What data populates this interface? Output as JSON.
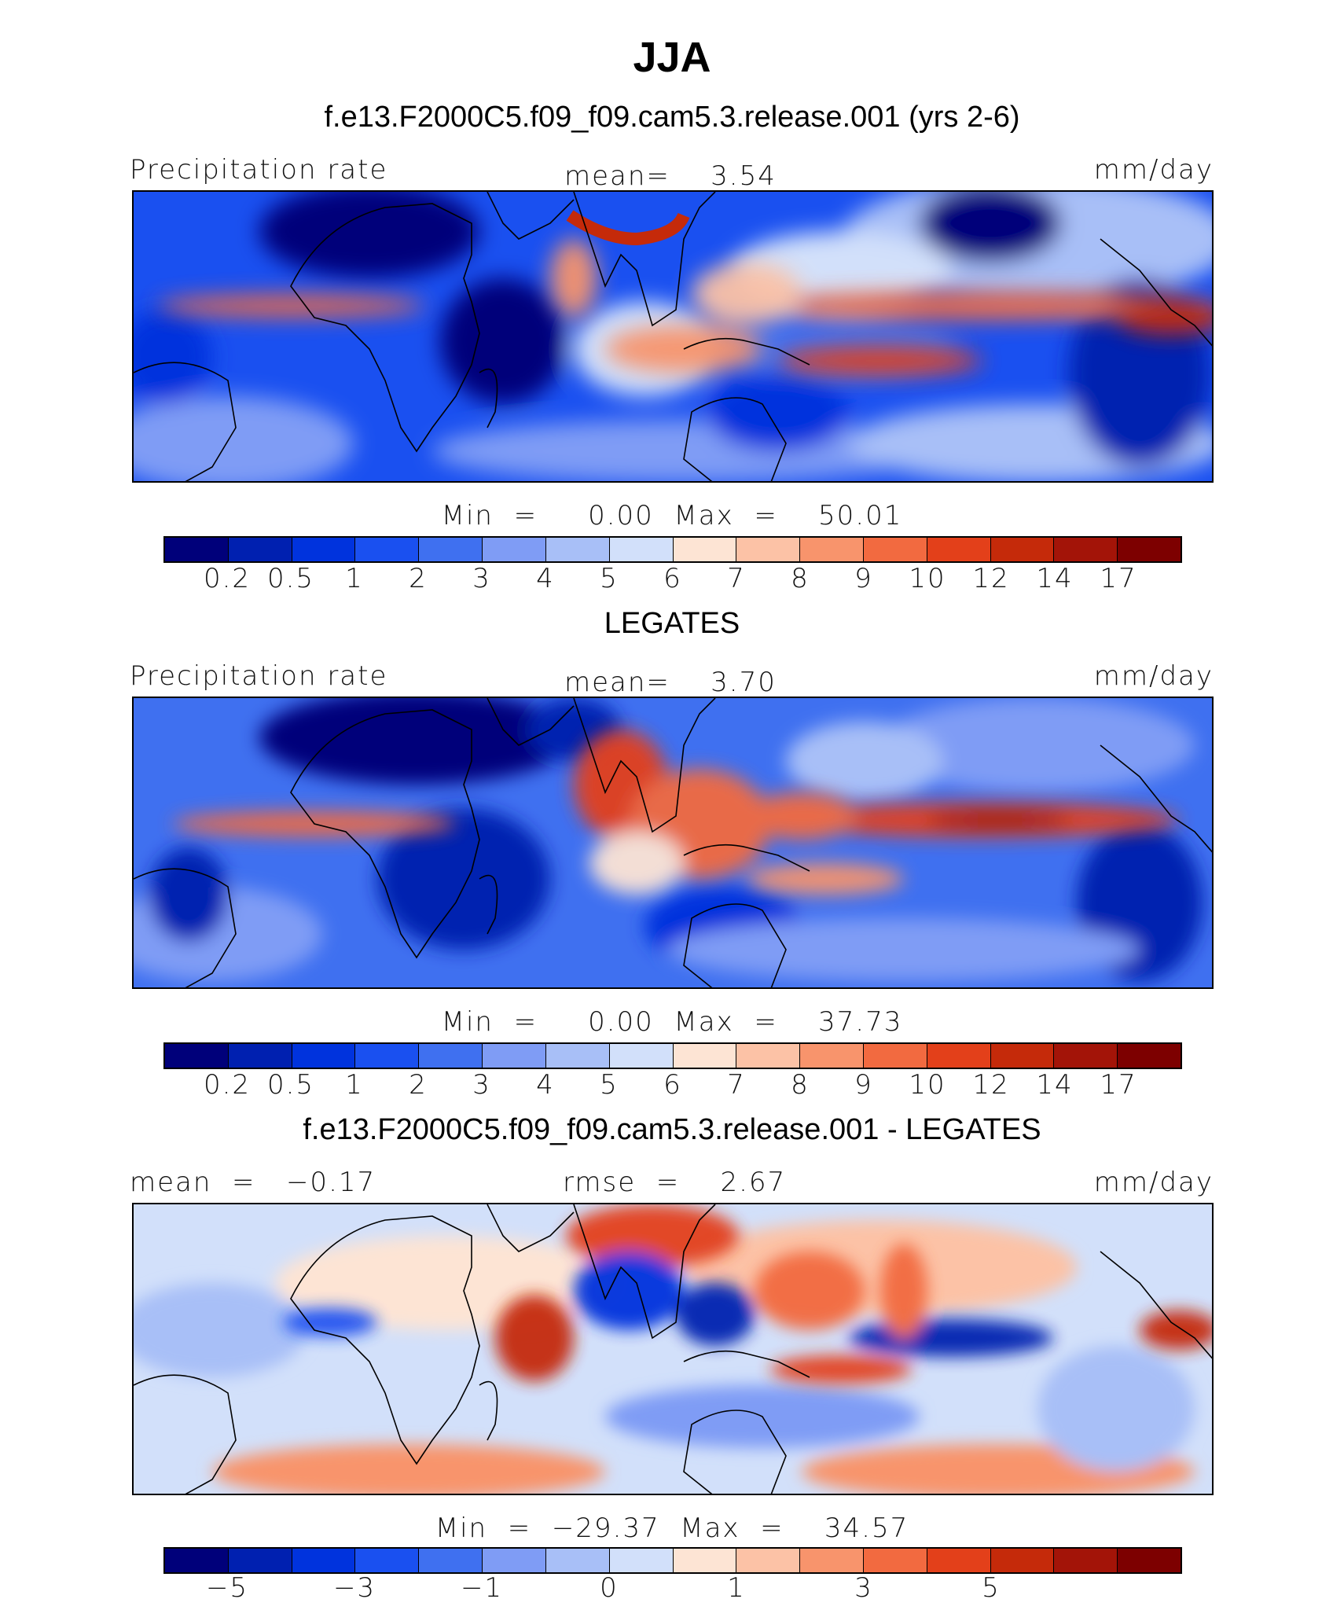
{
  "title": "JJA",
  "colors": {
    "precip_scale": [
      "#00007a",
      "#0020b0",
      "#0033dd",
      "#1a50f0",
      "#3f70f0",
      "#7f9cf5",
      "#a8bff7",
      "#d2e0fa",
      "#fde4d4",
      "#fcc2a6",
      "#f8946c",
      "#f26a40",
      "#e3401a",
      "#c52a0a",
      "#a31408",
      "#7d0000"
    ],
    "diff_scale": [
      "#00007a",
      "#0020b0",
      "#0033dd",
      "#1a50f0",
      "#3f70f0",
      "#7f9cf5",
      "#a8bff7",
      "#d2e0fa",
      "#fde4d4",
      "#fcc2a6",
      "#f8946c",
      "#f26a40",
      "#e3401a",
      "#c52a0a",
      "#a31408",
      "#7d0000"
    ]
  },
  "panels": [
    {
      "heading": "f.e13.F2000C5.f09_f09.cam5.3.release.001 (yrs 2-6)",
      "left_label": "Precipitation rate",
      "center_label": "mean=    3.54",
      "right_label": "mm/day",
      "min_max": "Min  =     0.00  Max  =    50.01",
      "tick_labels": [
        "0.2",
        "0.5",
        "1",
        "2",
        "3",
        "4",
        "5",
        "6",
        "7",
        "8",
        "9",
        "10",
        "12",
        "14",
        "17"
      ],
      "scale": "precip_scale"
    },
    {
      "heading": "LEGATES",
      "left_label": "Precipitation rate",
      "center_label": "mean=    3.70",
      "right_label": "mm/day",
      "min_max": "Min  =     0.00  Max  =    37.73",
      "tick_labels": [
        "0.2",
        "0.5",
        "1",
        "2",
        "3",
        "4",
        "5",
        "6",
        "7",
        "8",
        "9",
        "10",
        "12",
        "14",
        "17"
      ],
      "scale": "precip_scale"
    },
    {
      "heading": "f.e13.F2000C5.f09_f09.cam5.3.release.001 - LEGATES",
      "left_label": "mean  =   −0.17",
      "center_label": "rmse  =    2.67",
      "right_label": "mm/day",
      "min_max": "Min  =  −29.37  Max  =    34.57",
      "tick_labels": [
        "−5",
        "",
        "−3",
        "",
        "−1",
        "",
        "0",
        "",
        "1",
        "",
        "3",
        "",
        "5",
        "",
        ""
      ],
      "scale": "diff_scale"
    }
  ]
}
